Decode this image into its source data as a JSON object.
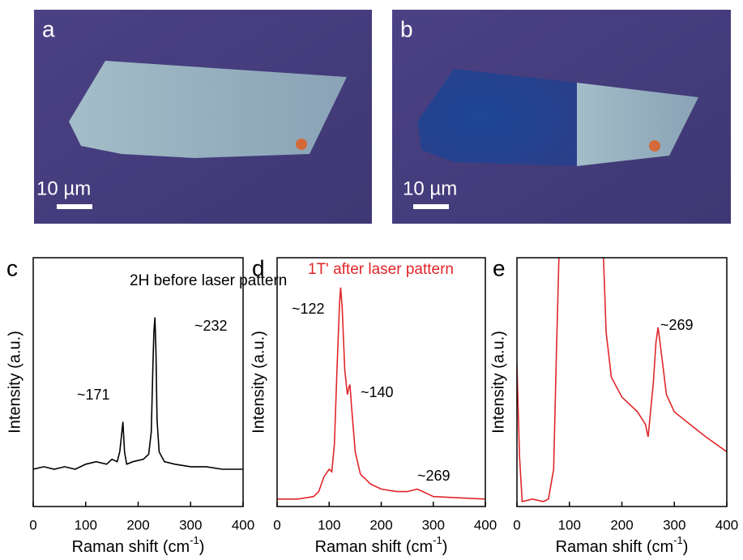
{
  "panels": [
    {
      "label": "a",
      "scale_bar": "10 µm"
    },
    {
      "label": "b",
      "scale_bar": "10 µm"
    }
  ],
  "chart_data": [
    {
      "type": "line",
      "label": "c",
      "title": "2H before laser pattern",
      "color": "#000000",
      "x_label": [
        "Raman shift (cm",
        "-1",
        ")"
      ],
      "y_label": "Intensity (a.u.)",
      "annotations": [
        "~171",
        "~232"
      ],
      "x": [
        0,
        20,
        40,
        60,
        80,
        100,
        120,
        140,
        150,
        160,
        165,
        168,
        171,
        174,
        178,
        190,
        210,
        220,
        225,
        228,
        230,
        232,
        234,
        236,
        240,
        250,
        270,
        300,
        330,
        360,
        400
      ],
      "values": [
        15,
        16,
        15,
        16,
        15,
        17,
        18,
        17,
        19,
        18,
        22,
        28,
        34,
        22,
        17,
        18,
        19,
        21,
        30,
        55,
        70,
        76,
        62,
        35,
        22,
        18,
        17,
        16,
        16,
        15,
        15
      ],
      "xlim": [
        0,
        400
      ],
      "xticks": [
        0,
        100,
        200,
        300,
        400
      ],
      "ylim": [
        0,
        100
      ]
    },
    {
      "type": "line",
      "label": "d",
      "title": "1T' after laser pattern",
      "color": "#e0262a",
      "x_label": [
        "Raman shift (cm",
        "-1",
        ")"
      ],
      "y_label": "Intensity (a.u.)",
      "annotations": [
        "~122",
        "~140",
        "~269"
      ],
      "x": [
        0,
        40,
        70,
        80,
        90,
        100,
        105,
        110,
        115,
        120,
        122,
        125,
        130,
        135,
        138,
        140,
        143,
        150,
        160,
        180,
        200,
        230,
        250,
        260,
        269,
        280,
        300,
        350,
        400
      ],
      "values": [
        3,
        3,
        4,
        6,
        12,
        15,
        14,
        25,
        55,
        82,
        88,
        80,
        55,
        45,
        48,
        49,
        40,
        22,
        13,
        9,
        7,
        6,
        6,
        6.5,
        7,
        6,
        4,
        3.5,
        3
      ],
      "xlim": [
        0,
        400
      ],
      "xticks": [
        0,
        100,
        200,
        300,
        400
      ],
      "ylim": [
        0,
        100
      ]
    },
    {
      "type": "line",
      "label": "e",
      "color": "#e0262a",
      "x_label": [
        "Raman shift (cm",
        "-1",
        ")"
      ],
      "y_label": "Intensity (a.u.)",
      "annotations": [
        "~269"
      ],
      "x": [
        0,
        5,
        10,
        30,
        50,
        60,
        70,
        75,
        80,
        90,
        160,
        165,
        170,
        180,
        200,
        230,
        245,
        250,
        260,
        265,
        269,
        275,
        285,
        300,
        330,
        360,
        400
      ],
      "values": [
        57,
        20,
        2,
        3,
        2,
        3,
        15,
        60,
        100,
        130,
        130,
        100,
        70,
        52,
        44,
        38,
        33,
        28,
        50,
        66,
        72,
        62,
        45,
        38,
        33,
        28,
        22
      ],
      "xlim": [
        0,
        400
      ],
      "xticks": [
        0,
        100,
        200,
        300,
        400
      ],
      "ylim": [
        0,
        100
      ]
    }
  ]
}
